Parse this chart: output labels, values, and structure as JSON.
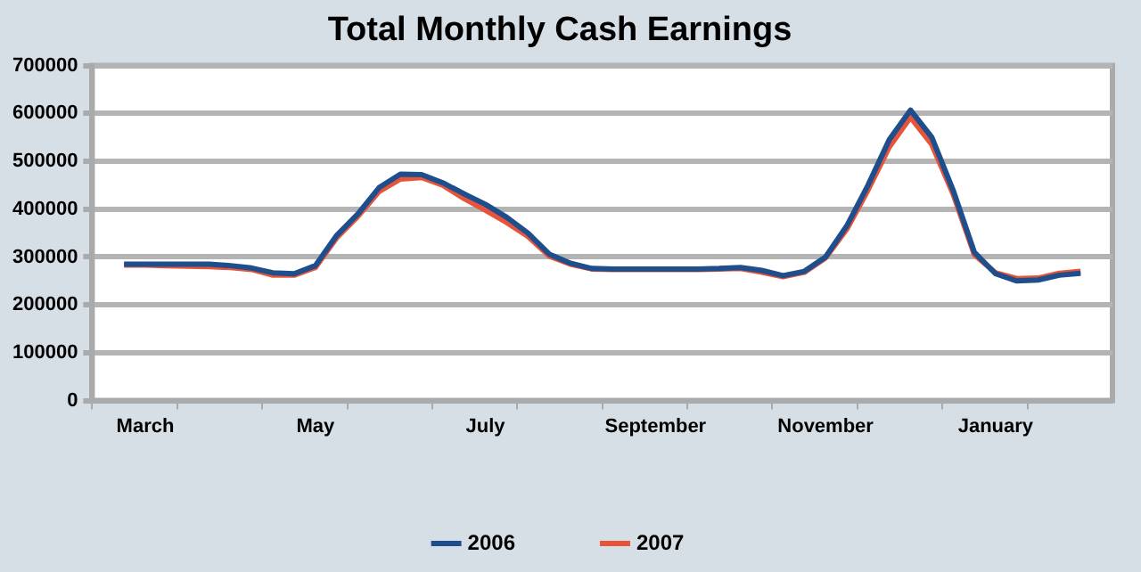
{
  "chart_data": {
    "type": "line",
    "title": "Total Monthly Cash Earnings",
    "categories": [
      null,
      null,
      "March",
      null,
      null,
      null,
      null,
      null,
      null,
      null,
      "May",
      null,
      null,
      null,
      null,
      null,
      null,
      null,
      "July",
      null,
      null,
      null,
      null,
      null,
      null,
      null,
      "September",
      null,
      null,
      null,
      null,
      null,
      null,
      null,
      "November",
      null,
      null,
      null,
      null,
      null,
      null,
      null,
      "January",
      null,
      null,
      null,
      null,
      null
    ],
    "series": [
      {
        "name": "2006",
        "color": "#1f4e8c",
        "values": [
          null,
          285000,
          285000,
          285000,
          285000,
          285000,
          282000,
          277000,
          267000,
          265000,
          282000,
          345000,
          390000,
          445000,
          473000,
          472000,
          455000,
          432000,
          410000,
          383000,
          350000,
          306000,
          287000,
          276000,
          275000,
          275000,
          275000,
          275000,
          275000,
          276000,
          278000,
          272000,
          261000,
          270000,
          300000,
          365000,
          450000,
          545000,
          607000,
          550000,
          440000,
          310000,
          265000,
          250000,
          252000,
          262000,
          266000,
          null
        ]
      },
      {
        "name": "2007",
        "color": "#e8543a",
        "values": [
          null,
          283000,
          283000,
          282000,
          281000,
          280000,
          278000,
          274000,
          262000,
          262000,
          278000,
          340000,
          385000,
          437000,
          463000,
          466000,
          450000,
          422000,
          398000,
          372000,
          343000,
          302000,
          285000,
          275000,
          274000,
          274000,
          274000,
          274000,
          274000,
          275000,
          276000,
          268000,
          259000,
          268000,
          298000,
          358000,
          440000,
          530000,
          592000,
          535000,
          432000,
          305000,
          267000,
          255000,
          256000,
          266000,
          270000,
          null
        ]
      }
    ],
    "ylim": [
      0,
      700000
    ],
    "yticks": [
      0,
      100000,
      200000,
      300000,
      400000,
      500000,
      600000,
      700000
    ],
    "grid": "y",
    "legend": "bottom"
  }
}
